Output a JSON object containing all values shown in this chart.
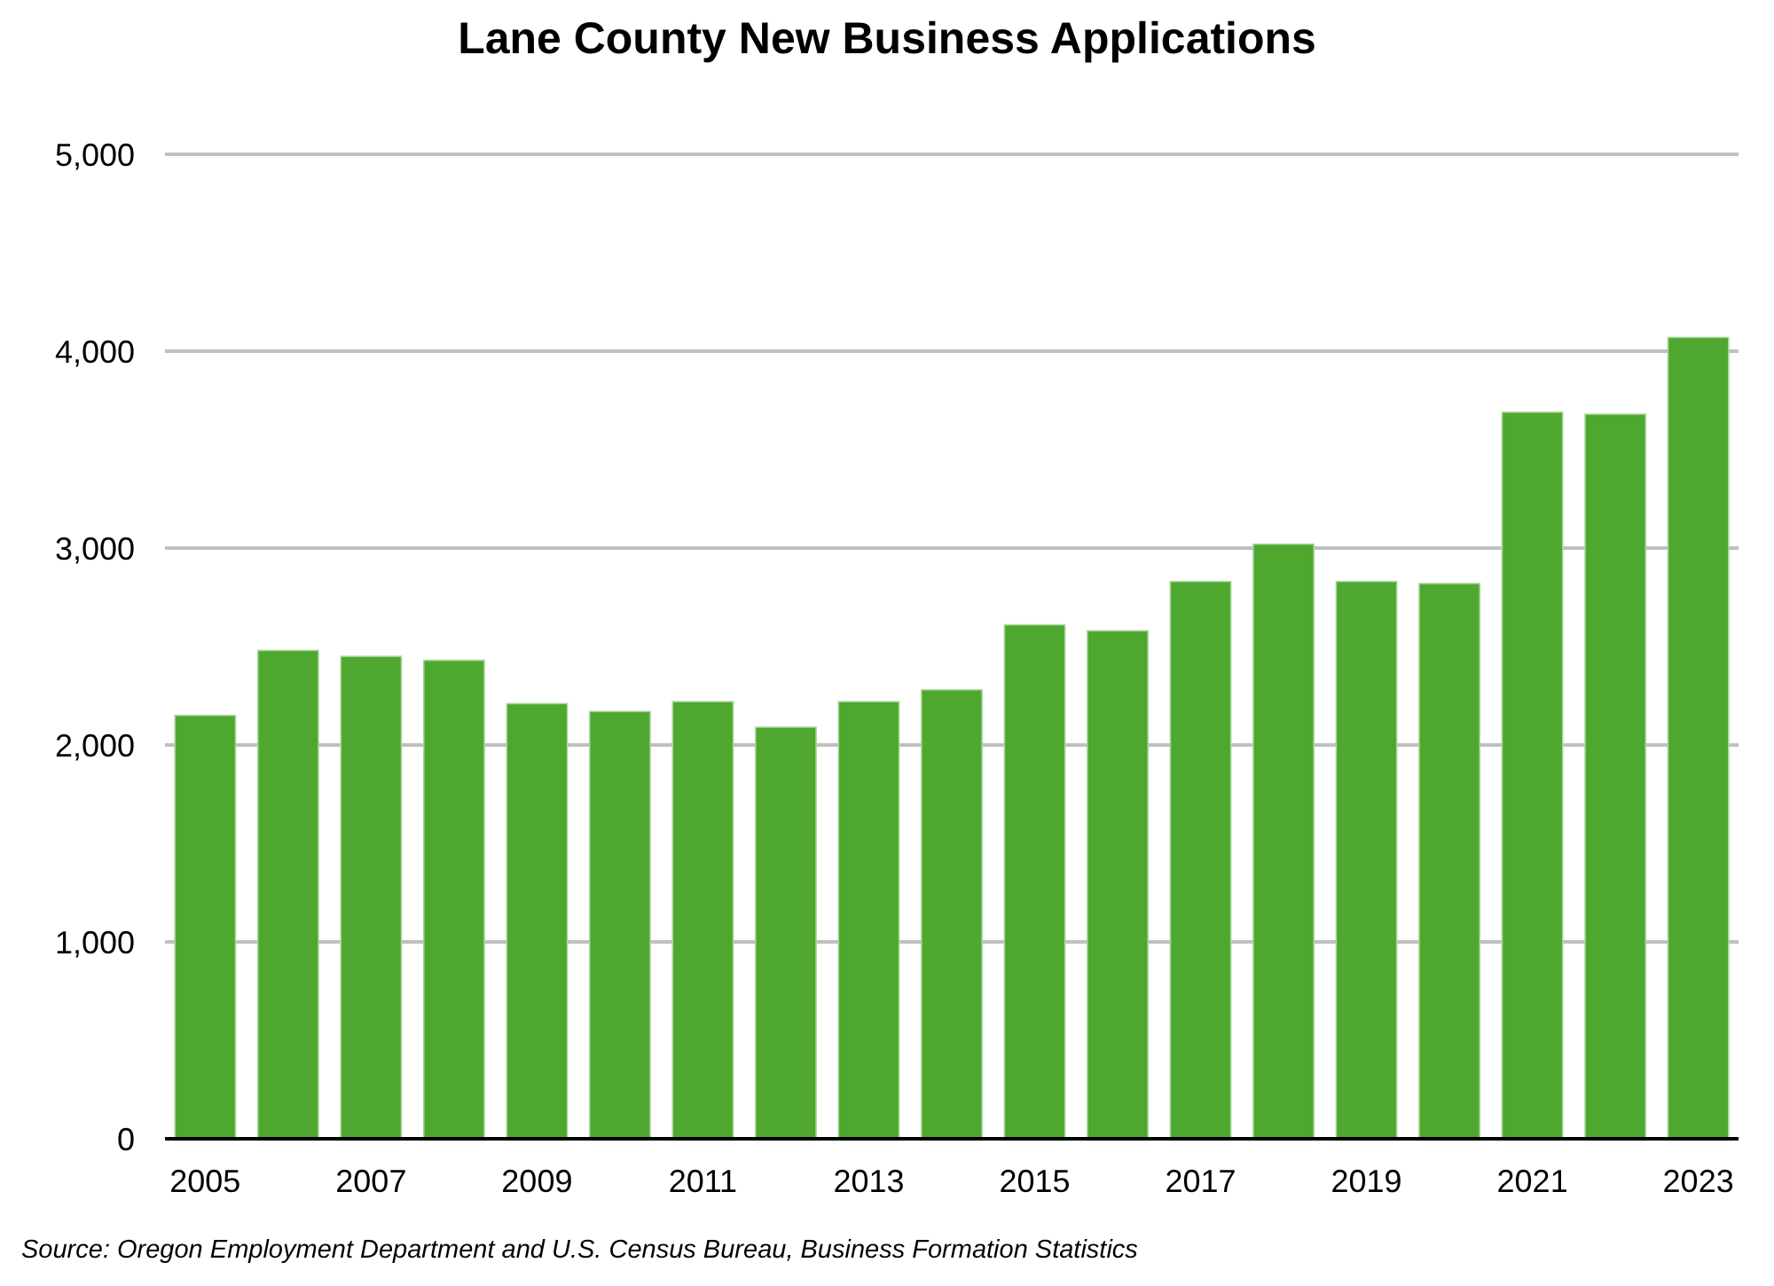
{
  "chart_data": {
    "type": "bar",
    "title": "Lane County New Business Applications",
    "categories": [
      "2005",
      null,
      "2007",
      null,
      "2009",
      null,
      "2011",
      null,
      "2013",
      null,
      "2015",
      null,
      "2017",
      null,
      "2019",
      null,
      "2021",
      null,
      "2023"
    ],
    "values": [
      2150,
      2480,
      2450,
      2430,
      2210,
      2170,
      2220,
      2090,
      2220,
      2280,
      2610,
      2580,
      2830,
      3020,
      2830,
      2820,
      3690,
      3680,
      4070
    ],
    "color": "#4ea72e",
    "ylim": [
      0,
      5000
    ],
    "yticks": [
      {
        "value": 0,
        "label": "0"
      },
      {
        "value": 1000,
        "label": "1,000"
      },
      {
        "value": 2000,
        "label": "2,000"
      },
      {
        "value": 3000,
        "label": "3,000"
      },
      {
        "value": 4000,
        "label": "4,000"
      },
      {
        "value": 5000,
        "label": "5,000"
      }
    ],
    "grid": "y",
    "annotations": [
      "Source: Oregon Employment Department and U.S. Census Bureau, Business Formation Statistics"
    ]
  }
}
